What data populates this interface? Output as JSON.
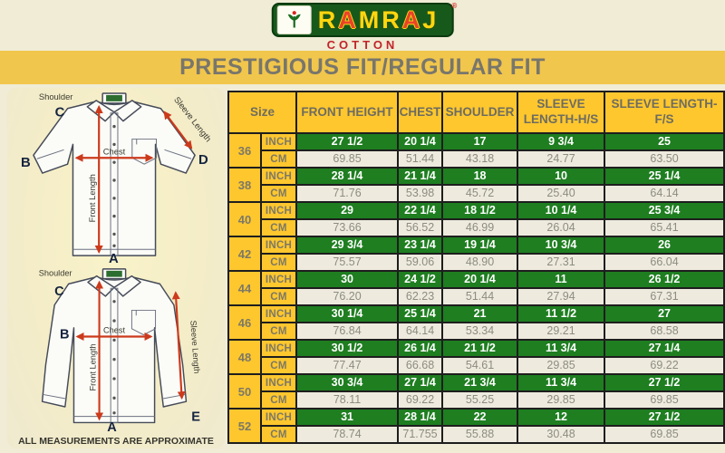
{
  "logo": {
    "brand": "RAMRAJ",
    "subtitle": "COTTON",
    "registered": "®",
    "plate_color": "#17591b",
    "brand_color": "#ffd60f",
    "subtitle_color": "#c2242a"
  },
  "banner": {
    "title": "PRESTIGIOUS FIT/REGULAR FIT",
    "background": "#f1c64c",
    "text_color": "#78766c"
  },
  "diagram": {
    "shoulder_label": "Shoulder",
    "chest_label": "Chest",
    "front_length_label": "Front Length",
    "sleeve_length_label": "Sleeve Length",
    "points": {
      "a": "A",
      "b": "B",
      "c": "C",
      "d": "D",
      "e": "E"
    },
    "note": "ALL MEASUREMENTS ARE APPROXIMATE",
    "arrow_color": "#cc3a1c"
  },
  "table": {
    "size_header": "Size",
    "columns": [
      "FRONT HEIGHT",
      "CHEST",
      "SHOULDER",
      "SLEEVE LENGTH-H/S",
      "SLEEVE LENGTH-F/S"
    ],
    "unit_labels": {
      "inch": "INCH",
      "cm": "CM"
    },
    "colors": {
      "header": "#fec72e",
      "inch_row": "#1e7e20",
      "cm_row": "#eeeade",
      "border": "#1e1e1e"
    },
    "sizes": [
      {
        "size": "36",
        "inch": [
          "27 1/2",
          "20 1/4",
          "17",
          "9 3/4",
          "25"
        ],
        "cm": [
          "69.85",
          "51.44",
          "43.18",
          "24.77",
          "63.50"
        ]
      },
      {
        "size": "38",
        "inch": [
          "28 1/4",
          "21 1/4",
          "18",
          "10",
          "25 1/4"
        ],
        "cm": [
          "71.76",
          "53.98",
          "45.72",
          "25.40",
          "64.14"
        ]
      },
      {
        "size": "40",
        "inch": [
          "29",
          "22 1/4",
          "18 1/2",
          "10 1/4",
          "25 3/4"
        ],
        "cm": [
          "73.66",
          "56.52",
          "46.99",
          "26.04",
          "65.41"
        ]
      },
      {
        "size": "42",
        "inch": [
          "29 3/4",
          "23 1/4",
          "19 1/4",
          "10 3/4",
          "26"
        ],
        "cm": [
          "75.57",
          "59.06",
          "48.90",
          "27.31",
          "66.04"
        ]
      },
      {
        "size": "44",
        "inch": [
          "30",
          "24 1/2",
          "20 1/4",
          "11",
          "26 1/2"
        ],
        "cm": [
          "76.20",
          "62.23",
          "51.44",
          "27.94",
          "67.31"
        ]
      },
      {
        "size": "46",
        "inch": [
          "30 1/4",
          "25 1/4",
          "21",
          "11 1/2",
          "27"
        ],
        "cm": [
          "76.84",
          "64.14",
          "53.34",
          "29.21",
          "68.58"
        ]
      },
      {
        "size": "48",
        "inch": [
          "30 1/2",
          "26 1/4",
          "21 1/2",
          "11 3/4",
          "27 1/4"
        ],
        "cm": [
          "77.47",
          "66.68",
          "54.61",
          "29.85",
          "69.22"
        ]
      },
      {
        "size": "50",
        "inch": [
          "30 3/4",
          "27 1/4",
          "21 3/4",
          "11 3/4",
          "27 1/2"
        ],
        "cm": [
          "78.11",
          "69.22",
          "55.25",
          "29.85",
          "69.85"
        ]
      },
      {
        "size": "52",
        "inch": [
          "31",
          "28 1/4",
          "22",
          "12",
          "27 1/2"
        ],
        "cm": [
          "78.74",
          "71.755",
          "55.88",
          "30.48",
          "69.85"
        ]
      }
    ]
  }
}
